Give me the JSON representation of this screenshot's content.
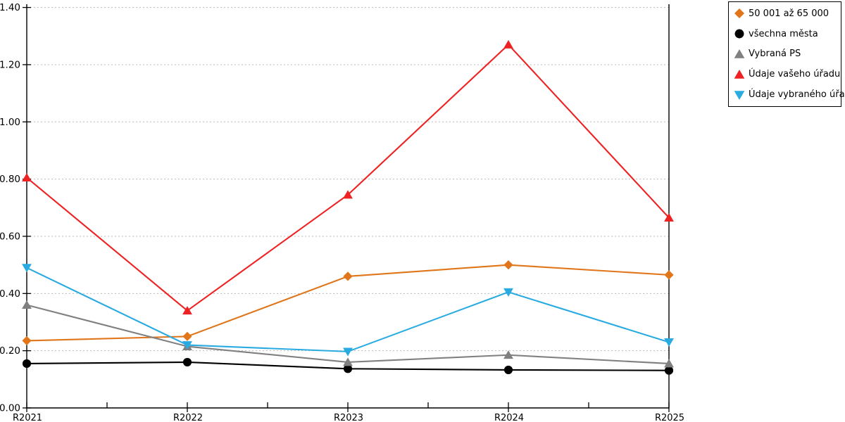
{
  "chart_data": {
    "type": "line",
    "title": "",
    "xlabel": "",
    "ylabel": "",
    "categories": [
      "R2021",
      "R2022",
      "R2023",
      "R2024",
      "R2025"
    ],
    "series": [
      {
        "name": "50 001 až 65 000",
        "marker": "diamond",
        "color": "#e0751a",
        "values": [
          0.235,
          0.25,
          0.46,
          0.5,
          0.465
        ]
      },
      {
        "name": "všechna města",
        "marker": "circle",
        "color": "#000000",
        "values": [
          0.155,
          0.16,
          0.137,
          0.133,
          0.131
        ]
      },
      {
        "name": "Vybraná PS",
        "marker": "triangle-up",
        "color": "#808080",
        "values": [
          0.36,
          0.215,
          0.16,
          0.185,
          0.155
        ]
      },
      {
        "name": "Údaje vašeho úřadu",
        "marker": "triangle-up",
        "color": "#ee2222",
        "values": [
          0.805,
          0.34,
          0.745,
          1.27,
          0.665
        ]
      },
      {
        "name": "Údaje vybraného úřadu",
        "marker": "triangle-down",
        "color": "#29abe2",
        "values": [
          0.49,
          0.22,
          0.197,
          0.405,
          0.23
        ]
      }
    ],
    "ylim": [
      0,
      1.4
    ],
    "y_tick_step": 0.2,
    "y_tick_labels": [
      "0.00",
      "0.20",
      "0.40",
      "0.60",
      "0.80",
      "1.00",
      "1.20",
      "1.40"
    ],
    "grid": "horizontal-dashed",
    "legend_position": "top-right",
    "colors": {
      "axis": "#000000",
      "grid": "#bbbbbb",
      "background": "#ffffff",
      "tick_text": "#000000"
    }
  }
}
